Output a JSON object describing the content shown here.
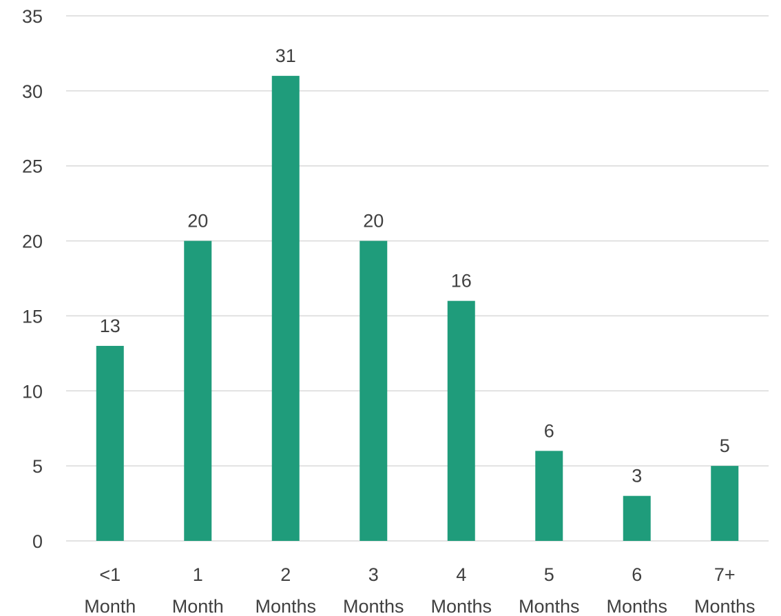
{
  "chart_data": {
    "type": "bar",
    "title": "",
    "xlabel": "",
    "ylabel": "",
    "categories": [
      [
        "<1",
        "Month"
      ],
      [
        "1",
        "Month"
      ],
      [
        "2",
        "Months"
      ],
      [
        "3",
        "Months"
      ],
      [
        "4",
        "Months"
      ],
      [
        "5",
        "Months"
      ],
      [
        "6",
        "Months"
      ],
      [
        "7+",
        "Months"
      ]
    ],
    "values": [
      13,
      20,
      31,
      20,
      16,
      6,
      3,
      5
    ],
    "ylim": [
      0,
      35
    ],
    "yticks": [
      0,
      5,
      10,
      15,
      20,
      25,
      30,
      35
    ],
    "grid": true,
    "legend": "none",
    "data_labels": true,
    "colors": {
      "bar": "#1f9c7b",
      "grid": "#d9d9d9",
      "text": "#404040"
    }
  }
}
